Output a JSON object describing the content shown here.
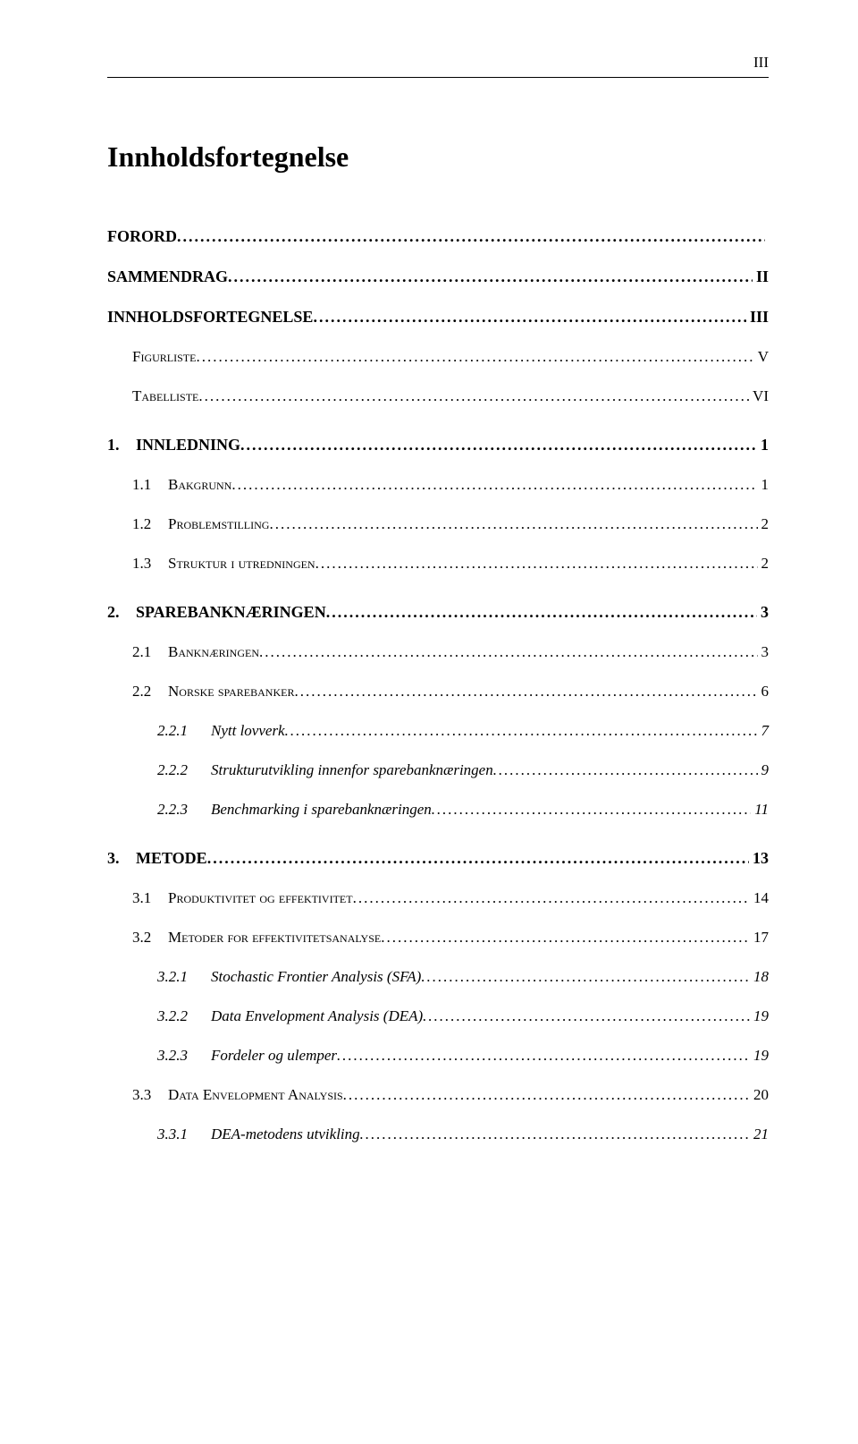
{
  "page_number_roman": "III",
  "title": "Innholdsfortegnelse",
  "entries": [
    {
      "level": "lvl0 front first",
      "num": "",
      "label": "FORORD",
      "page": ""
    },
    {
      "level": "lvl0 front",
      "num": "",
      "label": "SAMMENDRAG",
      "page": "II"
    },
    {
      "level": "lvl0 front",
      "num": "",
      "label": "INNHOLDSFORTEGNELSE",
      "page": "III"
    },
    {
      "level": "lvl1",
      "num": "",
      "label": "Figurliste",
      "page": "V",
      "nonum": true,
      "noindent": true
    },
    {
      "level": "lvl1",
      "num": "",
      "label": "Tabelliste",
      "page": "VI",
      "nonum": true,
      "noindent": true
    },
    {
      "level": "lvl0",
      "num": "1.",
      "label": "INNLEDNING",
      "page": "1"
    },
    {
      "level": "lvl1",
      "num": "1.1",
      "label": "Bakgrunn",
      "page": "1"
    },
    {
      "level": "lvl1",
      "num": "1.2",
      "label": "Problemstilling",
      "page": "2"
    },
    {
      "level": "lvl1",
      "num": "1.3",
      "label": "Struktur i utredningen",
      "page": "2"
    },
    {
      "level": "lvl0",
      "num": "2.",
      "label": "SPAREBANKNÆRINGEN",
      "page": "3"
    },
    {
      "level": "lvl1",
      "num": "2.1",
      "label": "Banknæringen",
      "page": "3"
    },
    {
      "level": "lvl1",
      "num": "2.2",
      "label": "Norske sparebanker",
      "page": "6"
    },
    {
      "level": "lvl2",
      "num": "2.2.1",
      "label": "Nytt lovverk",
      "page": "7"
    },
    {
      "level": "lvl2",
      "num": "2.2.2",
      "label": "Strukturutvikling innenfor sparebanknæringen",
      "page": "9"
    },
    {
      "level": "lvl2",
      "num": "2.2.3",
      "label": "Benchmarking i sparebanknæringen",
      "page": "11"
    },
    {
      "level": "lvl0",
      "num": "3.",
      "label": "METODE",
      "page": "13"
    },
    {
      "level": "lvl1",
      "num": "3.1",
      "label": "Produktivitet og effektivitet",
      "page": "14"
    },
    {
      "level": "lvl1",
      "num": "3.2",
      "label": "Metoder for effektivitetsanalyse",
      "page": "17"
    },
    {
      "level": "lvl2",
      "num": "3.2.1",
      "label": "Stochastic Frontier Analysis (SFA)",
      "page": "18"
    },
    {
      "level": "lvl2",
      "num": "3.2.2",
      "label": "Data Envelopment Analysis (DEA)",
      "page": "19"
    },
    {
      "level": "lvl2",
      "num": "3.2.3",
      "label": "Fordeler og ulemper",
      "page": "19"
    },
    {
      "level": "lvl1",
      "num": "3.3",
      "label": "Data Envelopment Analysis",
      "page": "20"
    },
    {
      "level": "lvl2",
      "num": "3.3.1",
      "label": "DEA-metodens utvikling",
      "page": "21"
    }
  ]
}
